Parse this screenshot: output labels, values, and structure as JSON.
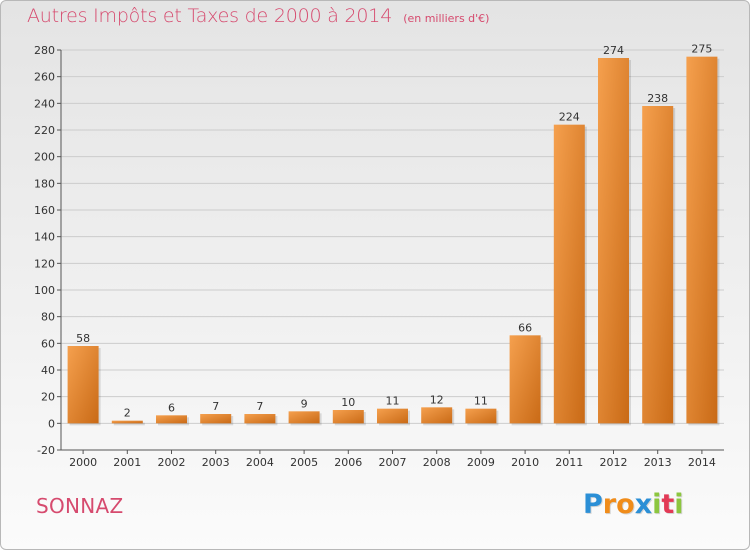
{
  "title": "Autres Impôts et Taxes de 2000 à 2014",
  "unit_note": "(en milliers d'€)",
  "commune": "SONNAZ",
  "brand": {
    "text": "Proxiti",
    "letters": [
      {
        "ch": "P",
        "color": "#2b8fd6"
      },
      {
        "ch": "r",
        "color": "#f08c1a"
      },
      {
        "ch": "o",
        "color": "#f08c1a"
      },
      {
        "ch": "x",
        "color": "#2b8fd6"
      },
      {
        "ch": "i",
        "color": "#8cc63f"
      },
      {
        "ch": "t",
        "color": "#e23a56"
      },
      {
        "ch": "i",
        "color": "#8cc63f"
      }
    ]
  },
  "colors": {
    "accent": "#d64a6e",
    "bar_light": "#f5a04e",
    "bar_dark": "#c96a16",
    "grid": "#cccccc",
    "axis": "#555555"
  },
  "chart_data": {
    "type": "bar",
    "title": "Autres Impôts et Taxes de 2000 à 2014",
    "subtitle": "(en milliers d'€)",
    "xlabel": "",
    "ylabel": "",
    "categories": [
      "2000",
      "2001",
      "2002",
      "2003",
      "2004",
      "2005",
      "2006",
      "2007",
      "2008",
      "2009",
      "2010",
      "2011",
      "2012",
      "2013",
      "2014"
    ],
    "values": [
      58,
      2,
      6,
      7,
      7,
      9,
      10,
      11,
      12,
      11,
      66,
      224,
      274,
      238,
      275
    ],
    "data_labels": [
      "58",
      "2",
      "6",
      "7",
      "7",
      "9",
      "10",
      "11",
      "12",
      "11",
      "66",
      "224",
      "274",
      "238",
      "275"
    ],
    "ylim": [
      -20,
      280
    ],
    "yticks": [
      -20,
      0,
      20,
      40,
      60,
      80,
      100,
      120,
      140,
      160,
      180,
      200,
      220,
      240,
      260,
      280
    ],
    "ytick_labels": [
      "-20",
      "0",
      "20",
      "40",
      "60",
      "80",
      "100",
      "120",
      "140",
      "160",
      "180",
      "200",
      "220",
      "240",
      "260",
      "280"
    ],
    "grid": true,
    "legend": "none"
  }
}
